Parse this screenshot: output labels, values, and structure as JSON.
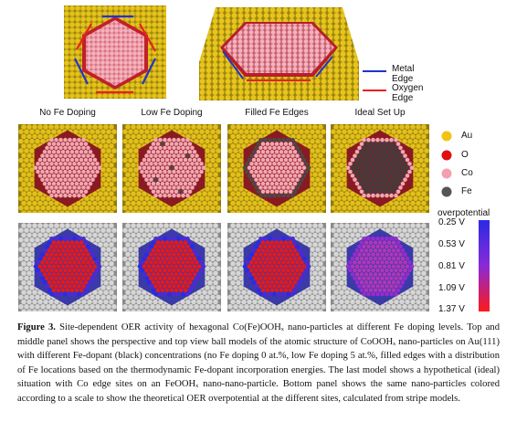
{
  "legend_lines": [
    {
      "label": "Metal Edge",
      "color": "#2233cc"
    },
    {
      "label": "Oxygen Edge",
      "color": "#e82020"
    }
  ],
  "columns": [
    "No Fe Doping",
    "Low Fe Doping",
    "Filled Fe Edges",
    "Ideal Set Up"
  ],
  "atom_legend": [
    {
      "label": "Au",
      "color": "#f1c40f"
    },
    {
      "label": "O",
      "color": "#e01010"
    },
    {
      "label": "Co",
      "color": "#f2a0b0"
    },
    {
      "label": "Fe",
      "color": "#555555"
    }
  ],
  "colorbar": {
    "title": "overpotential",
    "ticks": [
      "0.25 V",
      "0.53 V",
      "0.81 V",
      "1.09 V",
      "1.37 V"
    ],
    "top_color": "#2a2ae6",
    "bottom_color": "#ff1a1a"
  },
  "caption": {
    "label": "Figure 3.",
    "text": "Site-dependent OER activity of hexagonal Co(Fe)OOHₓ nano-particles at different Fe doping levels. Top and middle panel shows the perspective and top view ball models of the atomic structure of CoOOHₓ nano-particles on Au(111) with different Fe-dopant (black) concentrations (no Fe doping 0 at.%, low Fe doping 5 at.%, filled edges with a distribution of Fe locations based on the thermodynamic Fe-dopant incorporation energies. The last model shows a hypothetical (ideal) situation with Co edge sites on an FeOOHₓ nano-nano-particle. Bottom panel shows the same nano-particles colored according to a scale to show the theoretical OER overpotential at the different sites, calculated from stripe models."
  }
}
